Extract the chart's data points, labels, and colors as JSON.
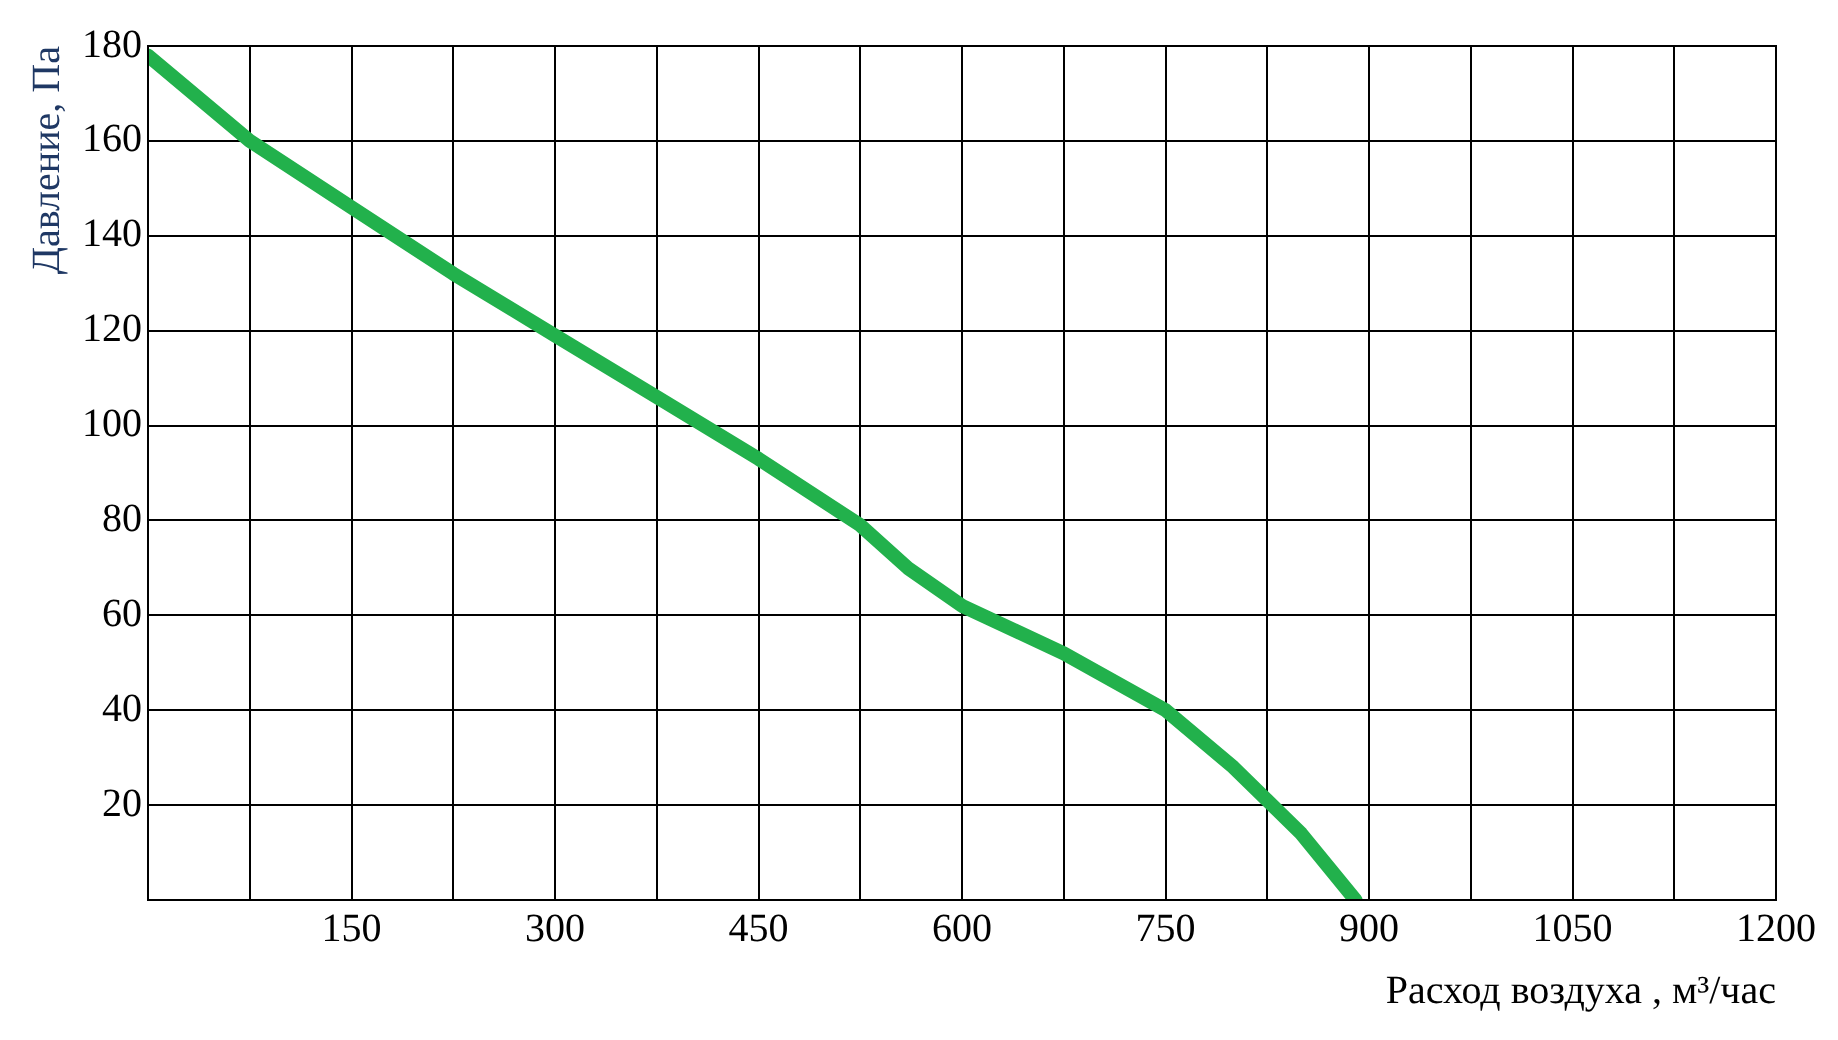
{
  "chart_data": {
    "type": "line",
    "xlabel": "Расход воздуха , м³/час",
    "ylabel": "Давление, Па",
    "x": [
      0,
      75,
      150,
      225,
      300,
      375,
      450,
      525,
      560,
      600,
      675,
      750,
      800,
      850,
      890
    ],
    "series": [
      {
        "color": "#22b14c",
        "values": [
          178,
          160,
          146,
          132,
          119,
          106,
          93,
          79,
          70,
          62,
          52,
          40,
          28,
          14,
          0
        ]
      }
    ],
    "xlim": [
      0,
      1200
    ],
    "ylim": [
      0,
      180
    ],
    "xticks": [
      {
        "value": 0,
        "label": null
      },
      {
        "value": 75,
        "label": null
      },
      150,
      {
        "value": 225,
        "label": null
      },
      300,
      {
        "value": 375,
        "label": null
      },
      450,
      {
        "value": 525,
        "label": null
      },
      600,
      {
        "value": 675,
        "label": null
      },
      750,
      {
        "value": 825,
        "label": null
      },
      900,
      {
        "value": 975,
        "label": null
      },
      1050,
      {
        "value": 1125,
        "label": null
      },
      1200
    ],
    "yticks": [
      {
        "value": 0,
        "label": null
      },
      20,
      40,
      60,
      80,
      100,
      120,
      140,
      160,
      180
    ],
    "grid": true,
    "legend": false,
    "marker": "none",
    "line_style": "solid"
  }
}
